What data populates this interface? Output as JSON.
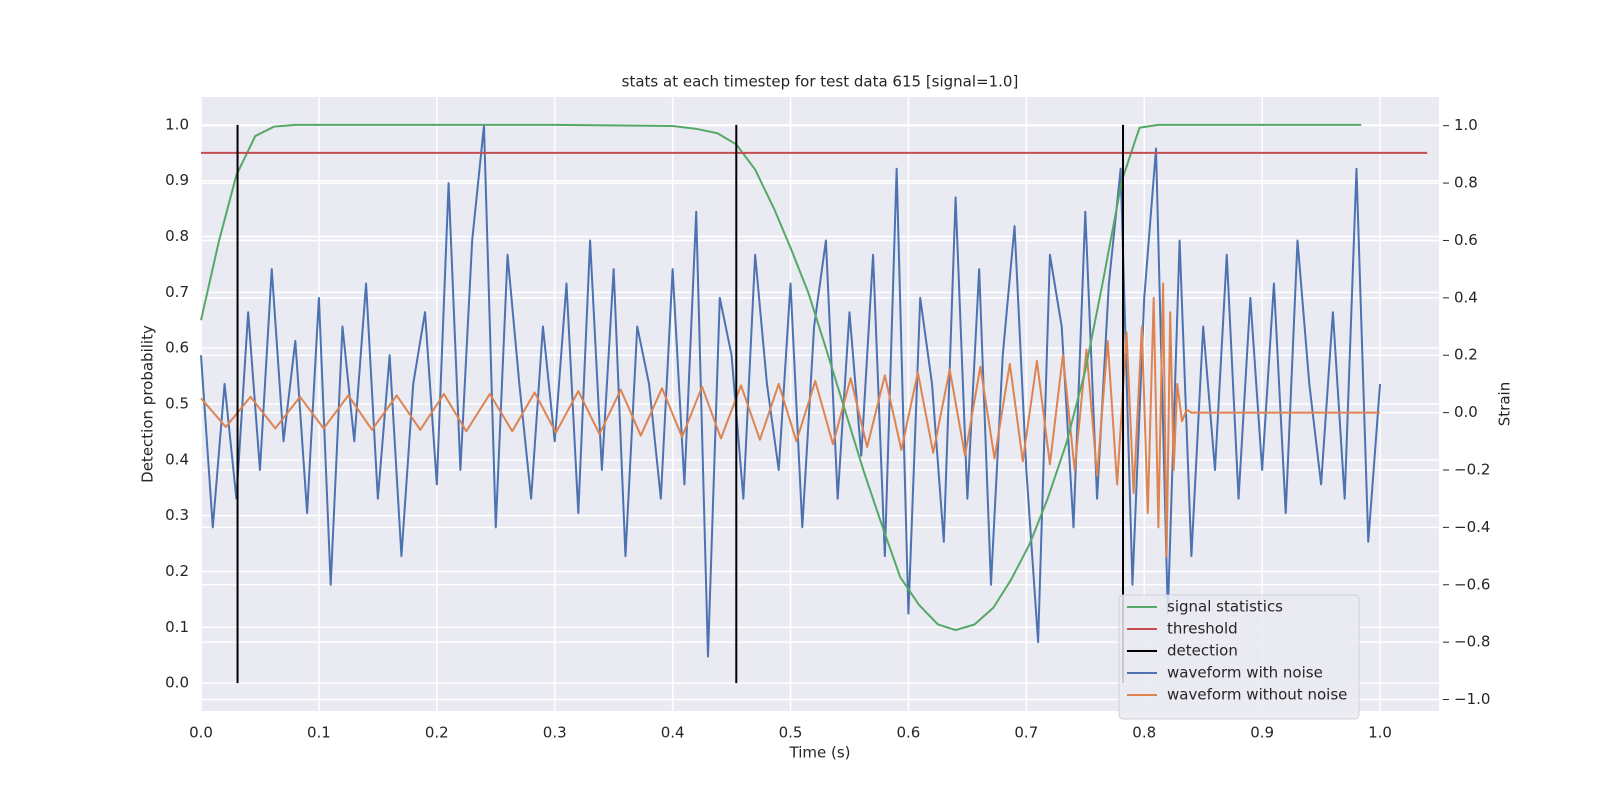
{
  "chart_data": {
    "type": "line",
    "title": "stats at each timestep for test data 615 [signal=1.0]",
    "xlabel": "Time (s)",
    "ylabel": "Detection probability",
    "y2label": "Strain",
    "xlim": [
      0,
      1.05
    ],
    "ylim": [
      -0.05,
      1.05
    ],
    "y2lim": [
      -1.04,
      1.1
    ],
    "xticks": [
      {
        "value": 0,
        "label": "0.0"
      },
      0.1,
      0.2,
      0.3,
      0.4,
      0.5,
      0.6,
      0.7,
      0.8,
      0.9,
      {
        "value": 1,
        "label": "1.0"
      }
    ],
    "yticks": [
      {
        "value": 0,
        "label": "0.0"
      },
      0.1,
      0.2,
      0.3,
      0.4,
      0.5,
      0.6,
      0.7,
      0.8,
      0.9,
      {
        "value": 1,
        "label": "1.0"
      }
    ],
    "y2ticks": [
      {
        "value": -1,
        "label": "−1.0"
      },
      {
        "value": -0.8,
        "label": "−0.8"
      },
      {
        "value": -0.6,
        "label": "−0.6"
      },
      {
        "value": -0.4,
        "label": "−0.4"
      },
      {
        "value": -0.2,
        "label": "−0.2"
      },
      {
        "value": 0,
        "label": "0.0"
      },
      0.2,
      0.4,
      0.6,
      0.8,
      {
        "value": 1,
        "label": "1.0"
      }
    ],
    "grid": true,
    "legend": "lower right",
    "series": [
      {
        "name": "signal statistics",
        "color": "#55a868",
        "axis": "y",
        "x": [
          0,
          0.015,
          0.03,
          0.046,
          0.062,
          0.08,
          0.1,
          0.2,
          0.3,
          0.4,
          0.42,
          0.438,
          0.454,
          0.47,
          0.486,
          0.5,
          0.515,
          0.53,
          0.546,
          0.562,
          0.578,
          0.593,
          0.609,
          0.625,
          0.64,
          0.656,
          0.672,
          0.687,
          0.703,
          0.718,
          0.734,
          0.75,
          0.765,
          0.781,
          0.796,
          0.812,
          0.984
        ],
        "values": [
          0.65,
          0.79,
          0.91,
          0.98,
          0.997,
          1.0,
          1.0,
          1.0,
          1.0,
          0.998,
          0.993,
          0.985,
          0.965,
          0.92,
          0.85,
          0.78,
          0.7,
          0.6,
          0.49,
          0.38,
          0.28,
          0.19,
          0.14,
          0.105,
          0.095,
          0.105,
          0.135,
          0.185,
          0.25,
          0.33,
          0.43,
          0.56,
          0.72,
          0.9,
          0.995,
          1.0,
          1.0
        ]
      },
      {
        "name": "threshold",
        "color": "#c44e52",
        "axis": "y",
        "x": [
          0,
          1.04
        ],
        "values": [
          0.95,
          0.95
        ]
      },
      {
        "name": "detection",
        "color": "#000000",
        "axis": "y",
        "style": "vlines",
        "x": [
          0.031,
          0.454,
          0.782
        ],
        "ymin": [
          0,
          0,
          0
        ],
        "values": [
          1,
          1,
          1
        ]
      },
      {
        "name": "waveform with noise",
        "color": "#4c72b0",
        "axis": "y2",
        "x": [
          0,
          0.01,
          0.02,
          0.03,
          0.04,
          0.05,
          0.06,
          0.07,
          0.08,
          0.09,
          0.1,
          0.11,
          0.12,
          0.13,
          0.14,
          0.15,
          0.16,
          0.17,
          0.18,
          0.19,
          0.2,
          0.21,
          0.22,
          0.23,
          0.24,
          0.25,
          0.26,
          0.27,
          0.28,
          0.29,
          0.3,
          0.31,
          0.32,
          0.33,
          0.34,
          0.35,
          0.36,
          0.37,
          0.38,
          0.39,
          0.4,
          0.41,
          0.42,
          0.43,
          0.44,
          0.45,
          0.46,
          0.47,
          0.48,
          0.49,
          0.5,
          0.51,
          0.52,
          0.53,
          0.54,
          0.55,
          0.56,
          0.57,
          0.58,
          0.59,
          0.6,
          0.61,
          0.62,
          0.63,
          0.64,
          0.65,
          0.66,
          0.67,
          0.68,
          0.69,
          0.7,
          0.71,
          0.72,
          0.73,
          0.74,
          0.75,
          0.76,
          0.77,
          0.78,
          0.79,
          0.8,
          0.81,
          0.82,
          0.83,
          0.84,
          0.85,
          0.86,
          0.87,
          0.88,
          0.89,
          0.9,
          0.91,
          0.92,
          0.93,
          0.94,
          0.95,
          0.96,
          0.97,
          0.98,
          0.99,
          1.0
        ],
        "values": [
          0.2,
          -0.4,
          0.1,
          -0.3,
          0.35,
          -0.2,
          0.5,
          -0.1,
          0.25,
          -0.35,
          0.4,
          -0.6,
          0.3,
          -0.1,
          0.45,
          -0.3,
          0.2,
          -0.5,
          0.1,
          0.35,
          -0.25,
          0.8,
          -0.2,
          0.6,
          1.0,
          -0.4,
          0.55,
          0.1,
          -0.3,
          0.3,
          -0.1,
          0.45,
          -0.35,
          0.6,
          -0.2,
          0.5,
          -0.5,
          0.3,
          0.1,
          -0.3,
          0.5,
          -0.25,
          0.7,
          -0.85,
          0.4,
          0.2,
          -0.3,
          0.55,
          0.1,
          -0.2,
          0.45,
          -0.4,
          0.3,
          0.6,
          -0.3,
          0.35,
          -0.15,
          0.55,
          -0.5,
          0.85,
          -0.7,
          0.4,
          0.1,
          -0.45,
          0.75,
          -0.3,
          0.5,
          -0.6,
          0.2,
          0.65,
          -0.2,
          -0.8,
          0.55,
          0.3,
          -0.4,
          0.7,
          -0.3,
          0.45,
          0.85,
          -0.6,
          0.4,
          0.92,
          -0.7,
          0.6,
          -0.5,
          0.3,
          -0.2,
          0.55,
          -0.3,
          0.4,
          -0.2,
          0.45,
          -0.35,
          0.6,
          0.1,
          -0.25,
          0.35,
          -0.3,
          0.85,
          -0.45,
          0.1
        ]
      },
      {
        "name": "waveform without noise",
        "color": "#dd8452",
        "axis": "y2",
        "x": [
          0,
          0.021,
          0.042,
          0.063,
          0.084,
          0.104,
          0.125,
          0.145,
          0.166,
          0.186,
          0.206,
          0.225,
          0.245,
          0.264,
          0.283,
          0.301,
          0.32,
          0.338,
          0.356,
          0.373,
          0.391,
          0.408,
          0.425,
          0.441,
          0.458,
          0.474,
          0.49,
          0.505,
          0.521,
          0.536,
          0.551,
          0.565,
          0.58,
          0.594,
          0.608,
          0.621,
          0.635,
          0.648,
          0.661,
          0.673,
          0.686,
          0.697,
          0.709,
          0.72,
          0.731,
          0.741,
          0.751,
          0.76,
          0.769,
          0.777,
          0.785,
          0.791,
          0.798,
          0.803,
          0.808,
          0.812,
          0.816,
          0.819,
          0.822,
          0.825,
          0.828,
          0.832,
          0.836,
          0.84,
          1.0
        ],
        "values": [
          0.05,
          -0.05,
          0.055,
          -0.055,
          0.055,
          -0.055,
          0.06,
          -0.06,
          0.06,
          -0.06,
          0.065,
          -0.065,
          0.065,
          -0.065,
          0.07,
          -0.07,
          0.075,
          -0.075,
          0.08,
          -0.08,
          0.085,
          -0.085,
          0.09,
          -0.09,
          0.095,
          -0.095,
          0.1,
          -0.1,
          0.11,
          -0.11,
          0.12,
          -0.12,
          0.13,
          -0.13,
          0.14,
          -0.14,
          0.15,
          -0.15,
          0.16,
          -0.16,
          0.17,
          -0.17,
          0.18,
          -0.18,
          0.2,
          -0.2,
          0.22,
          -0.22,
          0.25,
          -0.25,
          0.28,
          -0.28,
          0.3,
          -0.35,
          0.4,
          -0.4,
          0.45,
          -0.5,
          0.35,
          -0.2,
          0.1,
          -0.03,
          0.01,
          0,
          0
        ]
      }
    ]
  }
}
